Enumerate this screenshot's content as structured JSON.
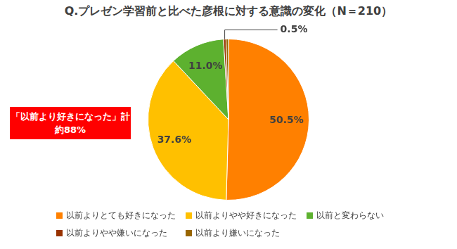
{
  "chart_data": {
    "type": "pie",
    "title": "Q.プレゼン学習前と比べた彦根に対する意識の変化（N＝210）",
    "categories": [
      "以前よりとても好きになった",
      "以前よりやや好きになった",
      "以前と変わらない",
      "以前よりやや嫌いになった",
      "以前より嫌いになった"
    ],
    "values": [
      50.5,
      37.6,
      11.0,
      0.5,
      0.5
    ],
    "value_labels": [
      "50.5%",
      "37.6%",
      "11.0%",
      "0.5%",
      null
    ],
    "colors": [
      "#ff8000",
      "#ffc000",
      "#5db12f",
      "#993300",
      "#996600"
    ],
    "data_labels": true,
    "legend": "bottom",
    "annotation": [
      "「以前より好きになった」計",
      "約88%"
    ]
  }
}
